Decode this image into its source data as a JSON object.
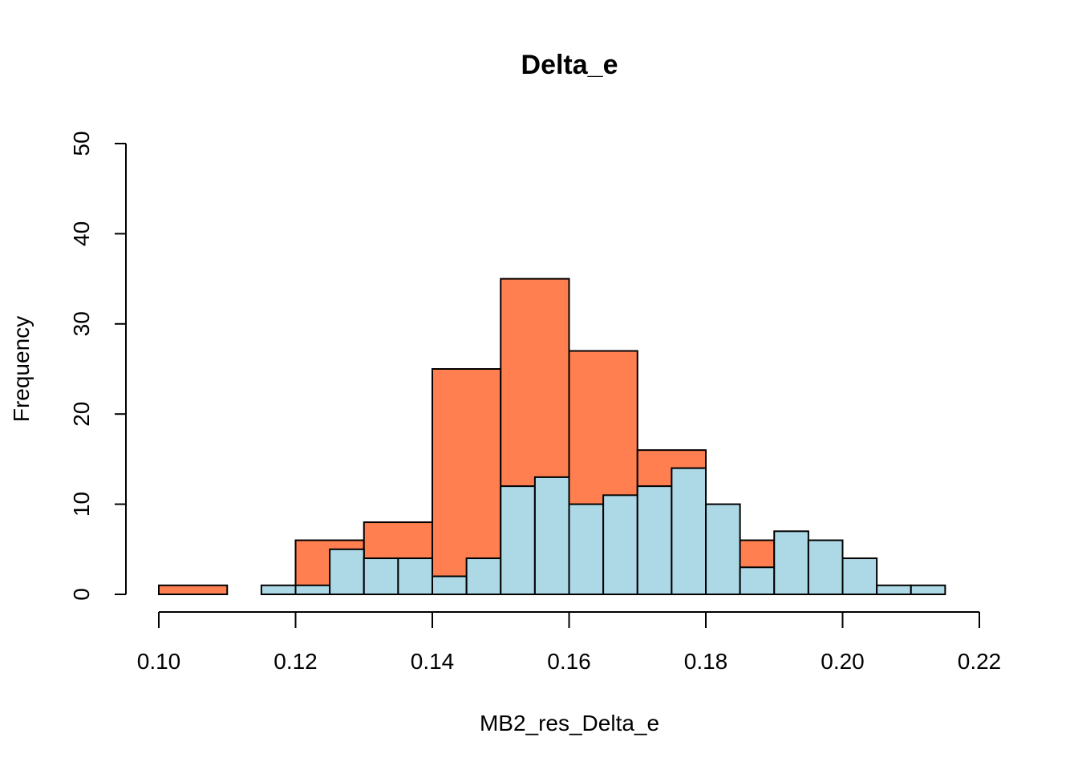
{
  "chart_data": {
    "type": "bar",
    "title": "Delta_e",
    "xlabel": "MB2_res_Delta_e",
    "ylabel": "Frequency",
    "xlim": [
      0.1,
      0.22
    ],
    "ylim": [
      0,
      50
    ],
    "xticks": [
      "0.10",
      "0.12",
      "0.14",
      "0.16",
      "0.18",
      "0.20",
      "0.22"
    ],
    "yticks": [
      "0",
      "10",
      "20",
      "30",
      "40",
      "50"
    ],
    "grid": false,
    "series": [
      {
        "name": "orange histogram (bin width 0.01)",
        "color": "#FF7F50",
        "bin_width": 0.01,
        "bin_starts": [
          0.1,
          0.11,
          0.12,
          0.13,
          0.14,
          0.15,
          0.16,
          0.17,
          0.18,
          0.19
        ],
        "values": [
          1,
          0,
          6,
          8,
          25,
          35,
          27,
          16,
          6,
          1
        ]
      },
      {
        "name": "blue histogram (bin width 0.005)",
        "color": "#ADD8E6",
        "bin_width": 0.005,
        "bin_starts": [
          0.115,
          0.12,
          0.125,
          0.13,
          0.135,
          0.14,
          0.145,
          0.15,
          0.155,
          0.16,
          0.165,
          0.17,
          0.175,
          0.18,
          0.185,
          0.19,
          0.195,
          0.2,
          0.205,
          0.21
        ],
        "values": [
          1,
          1,
          5,
          4,
          4,
          2,
          4,
          12,
          13,
          10,
          11,
          12,
          14,
          10,
          3,
          7,
          6,
          4,
          1,
          1
        ]
      }
    ]
  }
}
